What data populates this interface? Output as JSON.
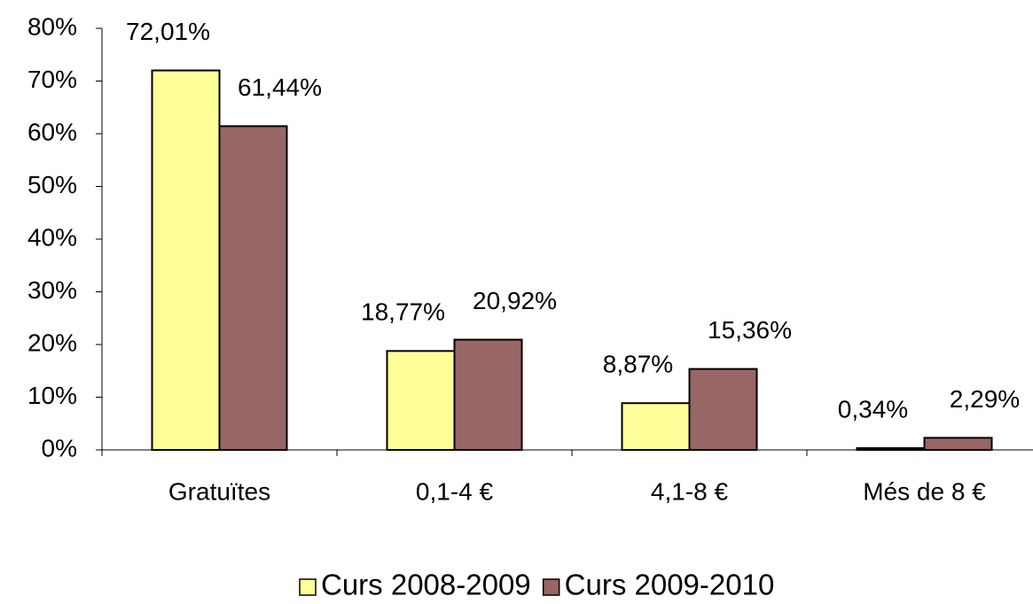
{
  "chart_data": {
    "type": "bar",
    "categories": [
      "Gratuïtes",
      "0,1-4 €",
      "4,1-8 €",
      "Més de 8 €"
    ],
    "series": [
      {
        "name": "Curs 2008-2009",
        "color": "#ffff99",
        "values": [
          72.01,
          18.77,
          8.87,
          0.34
        ],
        "value_labels": [
          "72,01%",
          "18,77%",
          "8,87%",
          "0,34%"
        ]
      },
      {
        "name": "Curs 2009-2010",
        "color": "#996666",
        "values": [
          61.44,
          20.92,
          15.36,
          2.29
        ],
        "value_labels": [
          "61,44%",
          "20,92%",
          "15,36%",
          "2,29%"
        ]
      }
    ],
    "ylim": [
      0,
      80
    ],
    "yticks": [
      {
        "value": 0,
        "label": "0%"
      },
      {
        "value": 10,
        "label": "10%"
      },
      {
        "value": 20,
        "label": "20%"
      },
      {
        "value": 30,
        "label": "30%"
      },
      {
        "value": 40,
        "label": "40%"
      },
      {
        "value": 50,
        "label": "50%"
      },
      {
        "value": 60,
        "label": "60%"
      },
      {
        "value": 70,
        "label": "70%"
      },
      {
        "value": 80,
        "label": "80%"
      }
    ],
    "legend": "bottom"
  }
}
